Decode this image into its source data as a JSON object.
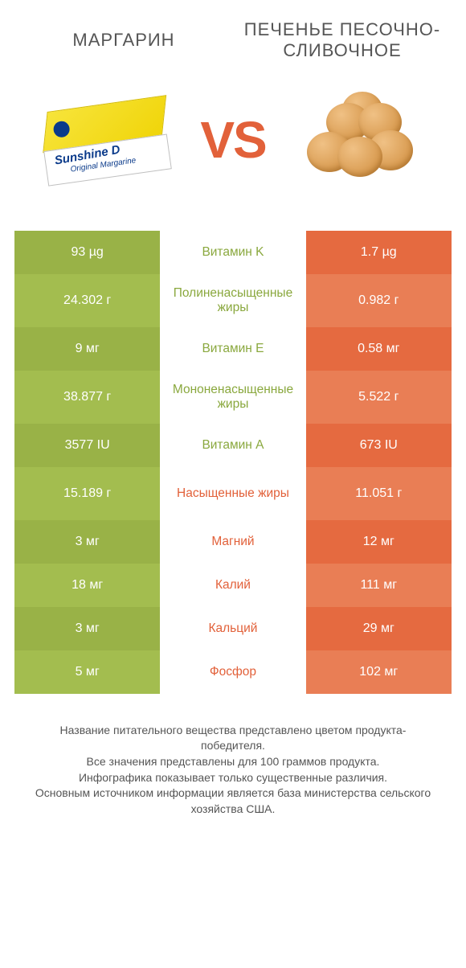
{
  "colors": {
    "green_dark": "#99b247",
    "green_light": "#a3bd4f",
    "orange_dark": "#e56a40",
    "orange_light": "#e97e55",
    "vs": "#e2613a"
  },
  "header": {
    "left_title": "МАРГАРИН",
    "right_title": "ПЕЧЕНЬЕ ПЕСОЧНО-СЛИВОЧНОЕ",
    "vs": "VS"
  },
  "rows": [
    {
      "left": "93 µg",
      "label": "Витамин K",
      "right": "1.7 µg",
      "winner": "left",
      "tall": false
    },
    {
      "left": "24.302 г",
      "label": "Полиненасыщенные жиры",
      "right": "0.982 г",
      "winner": "left",
      "tall": true
    },
    {
      "left": "9 мг",
      "label": "Витамин E",
      "right": "0.58 мг",
      "winner": "left",
      "tall": false
    },
    {
      "left": "38.877 г",
      "label": "Мононенасыщенные жиры",
      "right": "5.522 г",
      "winner": "left",
      "tall": true
    },
    {
      "left": "3577 IU",
      "label": "Витамин A",
      "right": "673 IU",
      "winner": "left",
      "tall": false
    },
    {
      "left": "15.189 г",
      "label": "Насыщенные жиры",
      "right": "11.051 г",
      "winner": "right",
      "tall": true
    },
    {
      "left": "3 мг",
      "label": "Магний",
      "right": "12 мг",
      "winner": "right",
      "tall": false
    },
    {
      "left": "18 мг",
      "label": "Калий",
      "right": "111 мг",
      "winner": "right",
      "tall": false
    },
    {
      "left": "3 мг",
      "label": "Кальций",
      "right": "29 мг",
      "winner": "right",
      "tall": false
    },
    {
      "left": "5 мг",
      "label": "Фосфор",
      "right": "102 мг",
      "winner": "right",
      "tall": false
    }
  ],
  "footer": {
    "line1": "Название питательного вещества представлено цветом продукта-победителя.",
    "line2": "Все значения представлены для 100 граммов продукта.",
    "line3": "Инфографика показывает только существенные различия.",
    "line4": "Основным источником информации является база министерства сельского хозяйства США."
  },
  "brand": {
    "name": "Sunshine D",
    "sub": "Original Margarine"
  }
}
